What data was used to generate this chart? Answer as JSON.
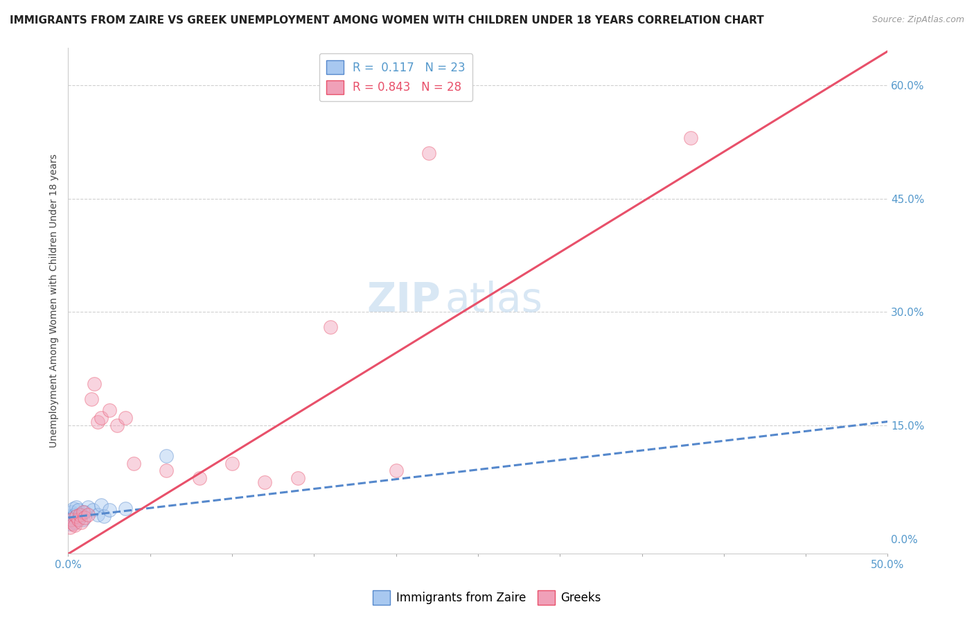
{
  "title": "IMMIGRANTS FROM ZAIRE VS GREEK UNEMPLOYMENT AMONG WOMEN WITH CHILDREN UNDER 18 YEARS CORRELATION CHART",
  "source": "Source: ZipAtlas.com",
  "ylabel": "Unemployment Among Women with Children Under 18 years",
  "xlim": [
    0.0,
    0.5
  ],
  "ylim": [
    -0.02,
    0.65
  ],
  "xticks": [
    0.0,
    0.05,
    0.1,
    0.15,
    0.2,
    0.25,
    0.3,
    0.35,
    0.4,
    0.45,
    0.5
  ],
  "yticks_right": [
    0.0,
    0.15,
    0.3,
    0.45,
    0.6
  ],
  "ytick_labels_right": [
    "0.0%",
    "15.0%",
    "30.0%",
    "45.0%",
    "60.0%"
  ],
  "xtick_labels_show": [
    "0.0%",
    "50.0%"
  ],
  "blue_R": 0.117,
  "blue_N": 23,
  "pink_R": 0.843,
  "pink_N": 28,
  "blue_color": "#a8c8f0",
  "pink_color": "#f0a0b8",
  "blue_line_color": "#5588cc",
  "pink_line_color": "#e8506a",
  "blue_scatter_x": [
    0.001,
    0.001,
    0.002,
    0.002,
    0.003,
    0.003,
    0.004,
    0.004,
    0.005,
    0.005,
    0.006,
    0.007,
    0.008,
    0.009,
    0.01,
    0.012,
    0.015,
    0.018,
    0.02,
    0.022,
    0.025,
    0.035,
    0.06
  ],
  "blue_scatter_y": [
    0.02,
    0.03,
    0.025,
    0.035,
    0.028,
    0.04,
    0.022,
    0.032,
    0.03,
    0.042,
    0.038,
    0.028,
    0.032,
    0.025,
    0.035,
    0.042,
    0.038,
    0.032,
    0.045,
    0.03,
    0.038,
    0.04,
    0.11
  ],
  "pink_scatter_x": [
    0.001,
    0.002,
    0.003,
    0.004,
    0.005,
    0.006,
    0.007,
    0.008,
    0.009,
    0.01,
    0.012,
    0.014,
    0.016,
    0.018,
    0.02,
    0.025,
    0.03,
    0.035,
    0.04,
    0.06,
    0.08,
    0.1,
    0.12,
    0.14,
    0.16,
    0.2,
    0.22,
    0.38
  ],
  "pink_scatter_y": [
    0.015,
    0.025,
    0.02,
    0.018,
    0.03,
    0.025,
    0.032,
    0.022,
    0.035,
    0.028,
    0.032,
    0.185,
    0.205,
    0.155,
    0.16,
    0.17,
    0.15,
    0.16,
    0.1,
    0.09,
    0.08,
    0.1,
    0.075,
    0.08,
    0.28,
    0.09,
    0.51,
    0.53
  ],
  "blue_trend_x": [
    0.0,
    0.5
  ],
  "blue_trend_y": [
    0.028,
    0.155
  ],
  "pink_trend_x": [
    0.0,
    0.5
  ],
  "pink_trend_y": [
    -0.02,
    0.645
  ],
  "watermark_zip": "ZIP",
  "watermark_atlas": "atlas",
  "grid_color": "#d0d0d0",
  "background_color": "#ffffff",
  "title_fontsize": 11,
  "legend_fontsize": 12,
  "tick_fontsize": 11,
  "ylabel_fontsize": 10,
  "scatter_size": 200,
  "scatter_alpha": 0.45
}
